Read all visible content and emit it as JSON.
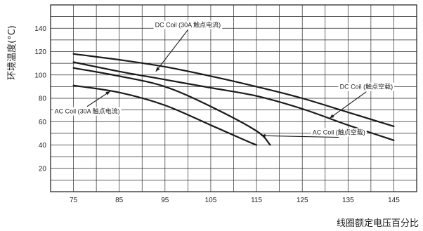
{
  "chart_data": {
    "type": "line",
    "title": "",
    "xlabel": "线圈额定电压百分比",
    "ylabel": "环境温度(°C)",
    "xlim": [
      70,
      150
    ],
    "ylim": [
      0,
      160
    ],
    "xticks": [
      "75",
      "85",
      "95",
      "105",
      "115",
      "125",
      "135",
      "145"
    ],
    "yticks": [
      "20",
      "40",
      "60",
      "80",
      "100",
      "120",
      "140"
    ],
    "grid": true,
    "x_grid_step": 5,
    "y_grid_step": 10,
    "colors": {
      "curve": "#1a1a1a",
      "grid": "#2a2a2a",
      "frame": "#1a1a1a"
    },
    "series": [
      {
        "label": "DC Coil (30A 触点电流)",
        "x": [
          75,
          85,
          95,
          105,
          115,
          125,
          135,
          145
        ],
        "y": [
          118,
          113,
          107,
          99,
          90,
          80,
          68,
          56
        ]
      },
      {
        "label": "DC Coil (触点空载)",
        "x": [
          75,
          85,
          95,
          105,
          115,
          125,
          135,
          145
        ],
        "y": [
          111,
          103,
          96,
          89,
          82,
          71,
          57,
          44
        ]
      },
      {
        "label": "AC Coil (触点空载)",
        "x": [
          75,
          85,
          95,
          105,
          115,
          118
        ],
        "y": [
          106,
          99,
          90,
          73,
          52,
          40
        ]
      },
      {
        "label": "AC Coil  (30A 触点电流)",
        "x": [
          75,
          85,
          95,
          105,
          112.5,
          115
        ],
        "y": [
          91,
          85,
          74,
          57,
          44,
          40
        ]
      }
    ],
    "annotations": [
      {
        "text": "DC Coil (30A 触点电流)",
        "series": 0,
        "point": [
          93,
          103
        ],
        "label_at": [
          100,
          141
        ]
      },
      {
        "text": "DC Coil (触点空载)",
        "series": 1,
        "point": [
          131,
          63
        ],
        "label_at": [
          139,
          88
        ]
      },
      {
        "text": "AC Coil (触点空载)",
        "series": 2,
        "point": [
          116,
          48
        ],
        "label_at": [
          133,
          49
        ]
      },
      {
        "text": "AC Coil  (30A 触点电流)",
        "series": 3,
        "point": [
          83,
          86
        ],
        "label_at": [
          78,
          67
        ]
      }
    ]
  }
}
